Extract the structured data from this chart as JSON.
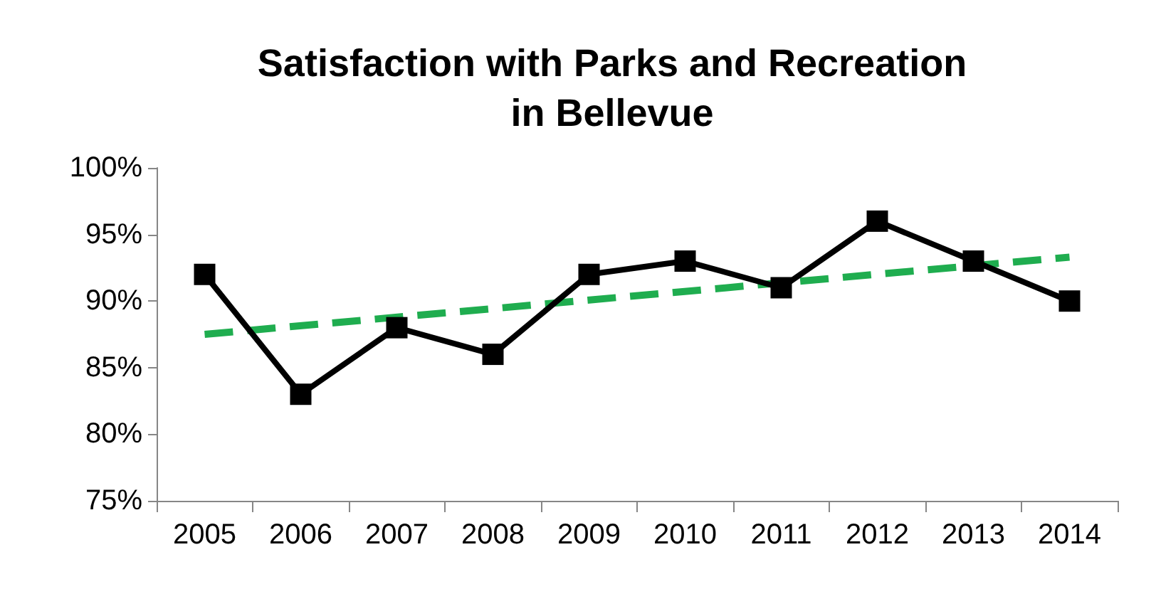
{
  "chart_data": {
    "type": "line",
    "title": "Satisfaction with Parks and Recreation\nin Bellevue",
    "categories": [
      "2005",
      "2006",
      "2007",
      "2008",
      "2009",
      "2010",
      "2011",
      "2012",
      "2013",
      "2014"
    ],
    "series": [
      {
        "color": "#000000",
        "values": [
          92,
          83,
          88,
          86,
          92,
          93,
          91,
          96,
          93,
          90
        ],
        "marker": "square",
        "line_style": "solid"
      },
      {
        "color": "#1fad4f",
        "values": [
          87.5,
          null,
          null,
          null,
          null,
          null,
          null,
          null,
          null,
          93.3
        ],
        "marker": "none",
        "line_style": "dashed"
      }
    ],
    "ylim": [
      75,
      100
    ],
    "yticks": [
      {
        "value": 75,
        "label": "75%"
      },
      {
        "value": 80,
        "label": "80%"
      },
      {
        "value": 85,
        "label": "85%"
      },
      {
        "value": 90,
        "label": "90%"
      },
      {
        "value": 95,
        "label": "95%"
      },
      {
        "value": 100,
        "label": "100%"
      }
    ],
    "grid": false
  }
}
